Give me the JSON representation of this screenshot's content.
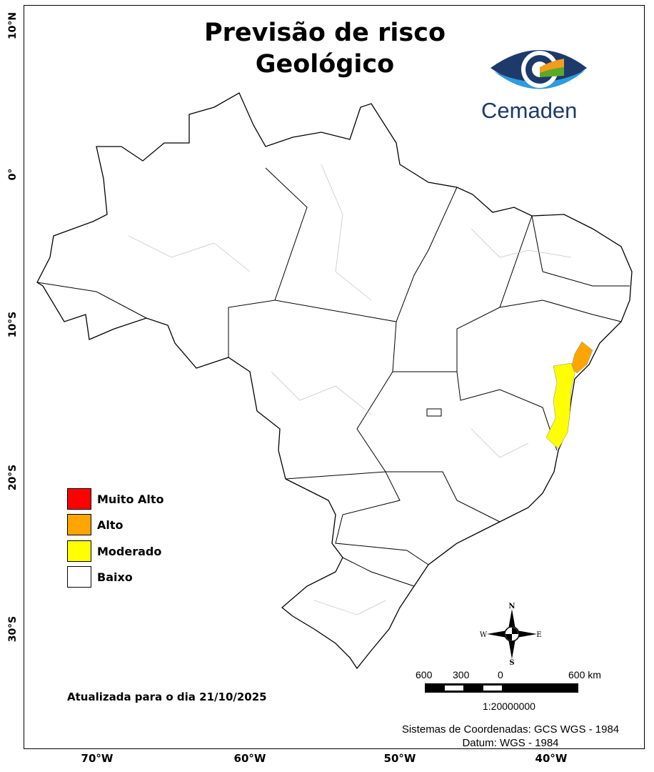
{
  "title_line1": "Previsão de risco",
  "title_line2": "Geológico",
  "logo": {
    "text": "Cemaden",
    "colors": {
      "dark_blue": "#1d3a6b",
      "light_blue": "#2f9be0",
      "orange": "#f39c1e",
      "green": "#5aaa2a"
    }
  },
  "lat_labels": [
    "10°N",
    "0°",
    "10°S",
    "20°S",
    "30°S"
  ],
  "lon_labels": [
    "70°W",
    "60°W",
    "50°W",
    "40°W"
  ],
  "legend": [
    {
      "label": "Muito Alto",
      "color": "#ff0000"
    },
    {
      "label": "Alto",
      "color": "#ffa500"
    },
    {
      "label": "Moderado",
      "color": "#ffff00"
    },
    {
      "label": "Baixo",
      "color": "#ffffff"
    }
  ],
  "updated": "Atualizada para o dia 21/10/2025",
  "compass": {
    "n": "N",
    "s": "S",
    "e": "E",
    "w": "W"
  },
  "scale_bar": {
    "labels": [
      "600",
      "300",
      "0",
      "600 km"
    ],
    "ratio": "1:20000000"
  },
  "coord_system": "Sistemas de Coordenadas: GCS WGS - 1984",
  "datum": "Datum: WGS - 1984"
}
